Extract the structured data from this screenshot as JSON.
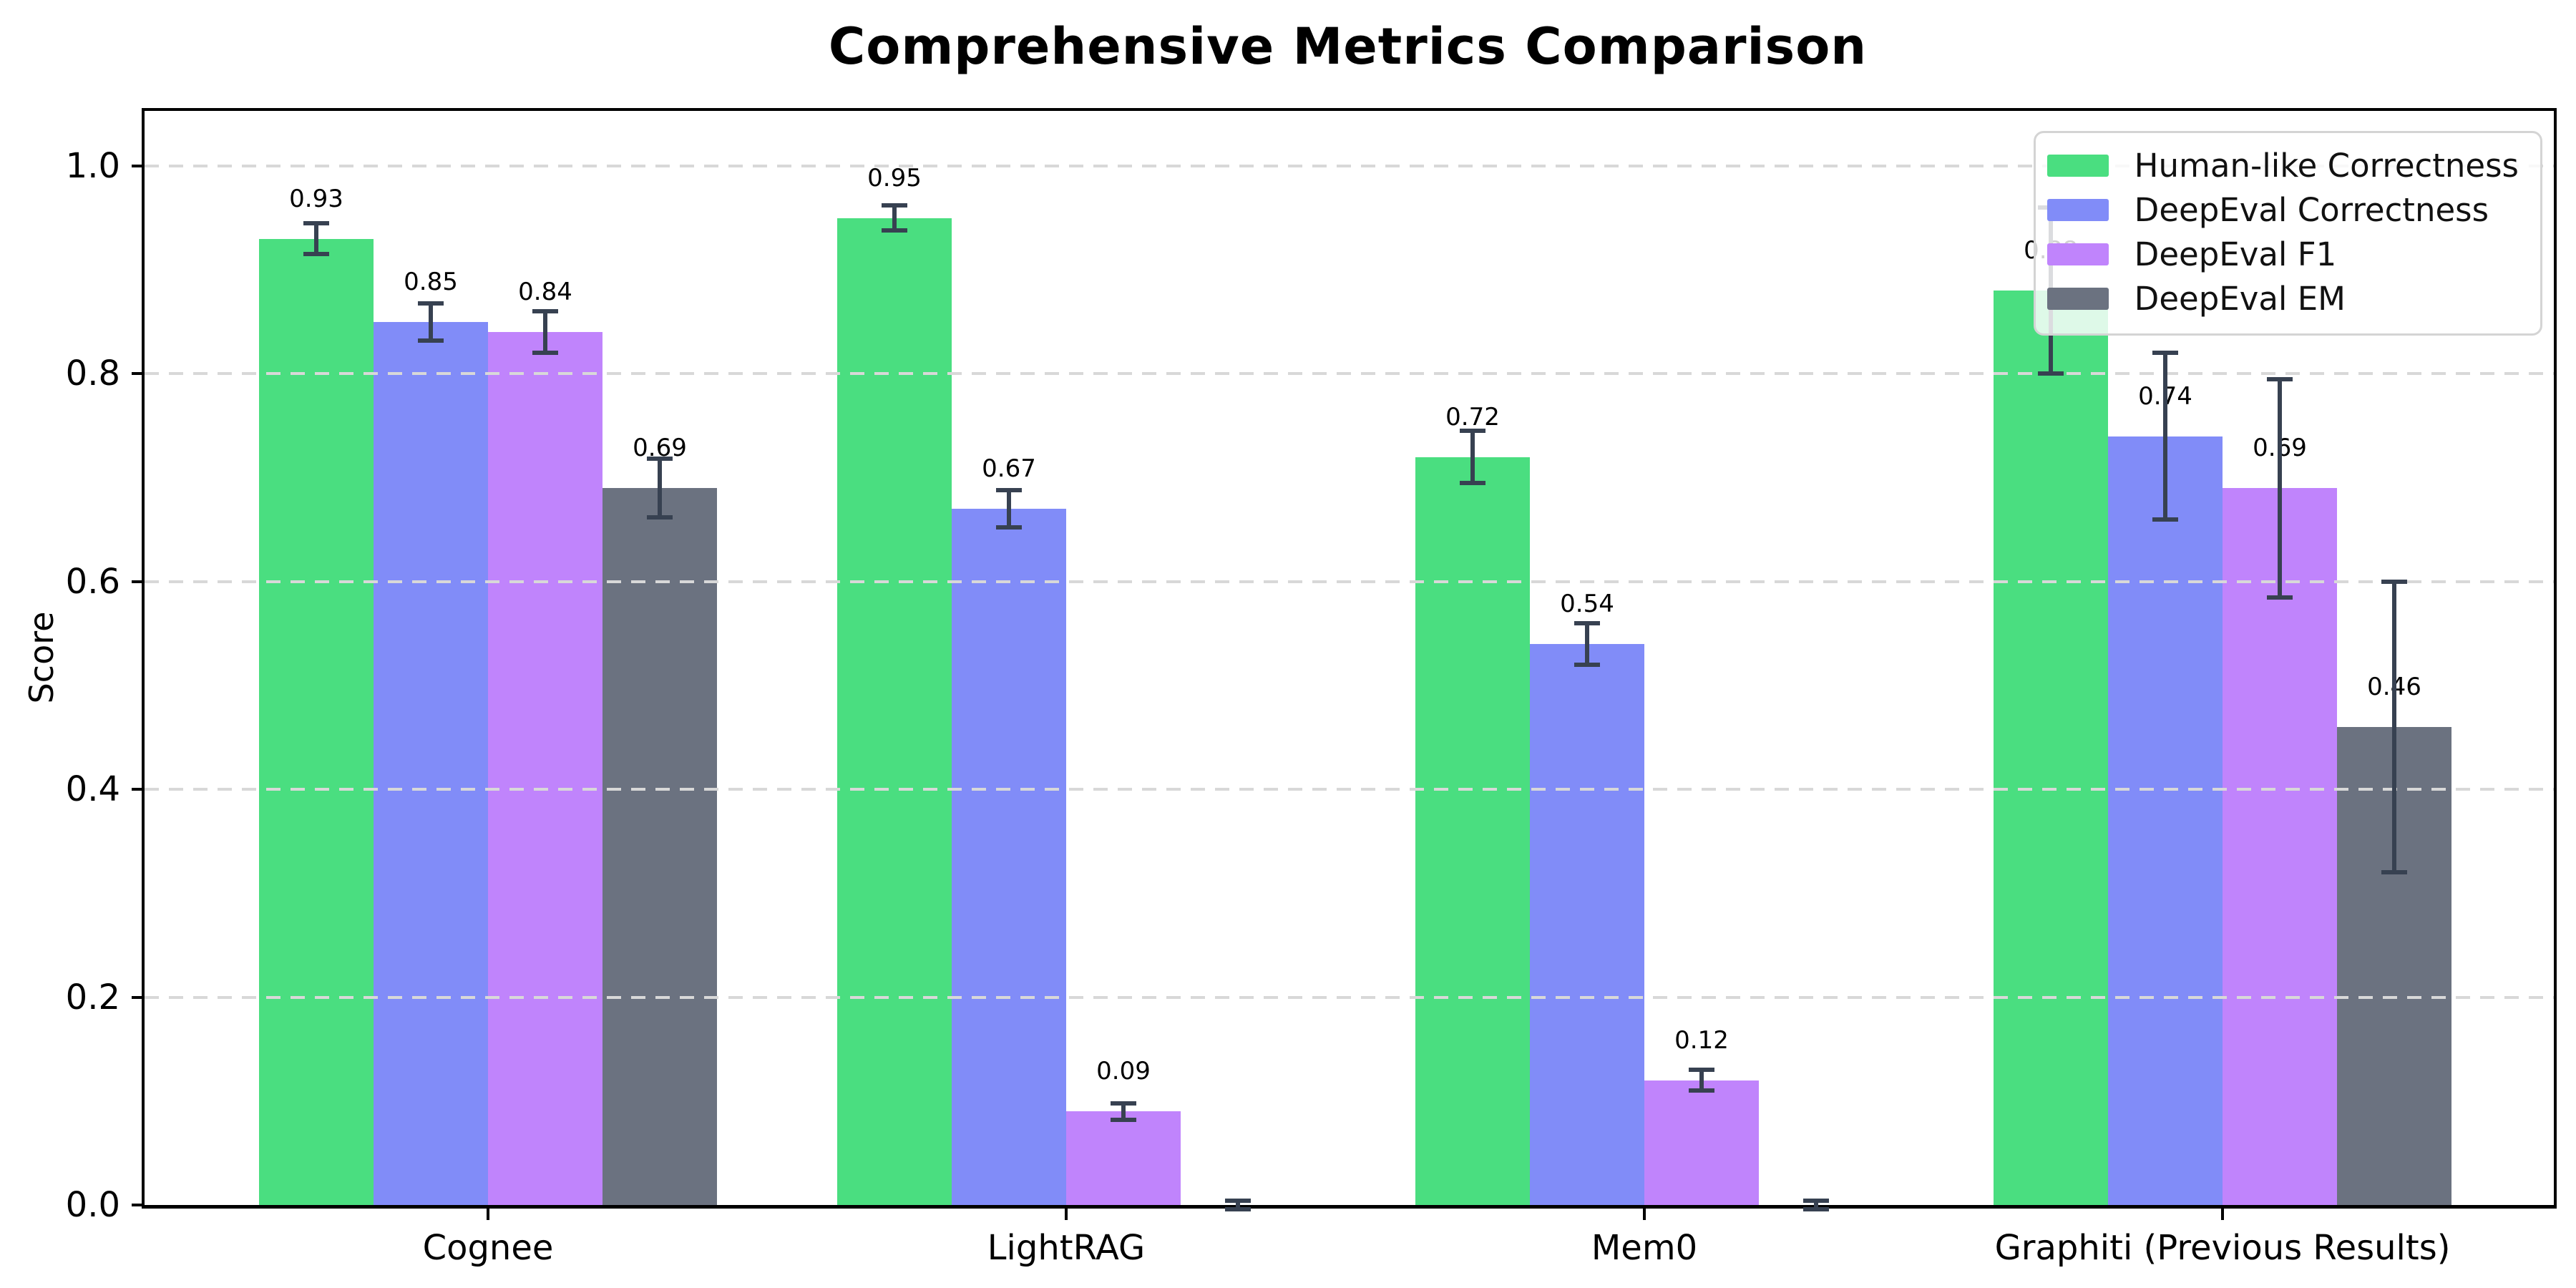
{
  "chart_data": {
    "type": "bar",
    "title": "Comprehensive Metrics Comparison",
    "xlabel": "",
    "ylabel": "Score",
    "categories": [
      "Cognee",
      "LightRAG",
      "Mem0",
      "Graphiti (Previous Results)"
    ],
    "series": [
      {
        "name": "Human-like Correctness",
        "color": "#4ade80",
        "values": [
          0.93,
          0.95,
          0.72,
          0.88
        ],
        "errors": [
          0.015,
          0.012,
          0.025,
          0.08
        ],
        "labels": [
          "0.93",
          "0.95",
          "0.72",
          "0.88"
        ]
      },
      {
        "name": "DeepEval Correctness",
        "color": "#818cf8",
        "values": [
          0.85,
          0.67,
          0.54,
          0.74
        ],
        "errors": [
          0.018,
          0.018,
          0.02,
          0.08
        ],
        "labels": [
          "0.85",
          "0.67",
          "0.54",
          "0.74"
        ]
      },
      {
        "name": "DeepEval F1",
        "color": "#c084fc",
        "values": [
          0.84,
          0.09,
          0.12,
          0.69
        ],
        "errors": [
          0.02,
          0.008,
          0.01,
          0.105
        ],
        "labels": [
          "0.84",
          "0.09",
          "0.12",
          "0.69"
        ]
      },
      {
        "name": "DeepEval EM",
        "color": "#6b7280",
        "values": [
          0.69,
          0.0,
          0.0,
          0.46
        ],
        "errors": [
          0.028,
          0.004,
          0.004,
          0.14
        ],
        "labels": [
          "0.69",
          null,
          null,
          "0.46"
        ]
      }
    ],
    "y_ticks": [
      "0.0",
      "0.2",
      "0.4",
      "0.6",
      "0.8",
      "1.0"
    ],
    "y_tick_values": [
      0,
      0.2,
      0.4,
      0.6,
      0.8,
      1.0
    ],
    "ylim": [
      0,
      1.053
    ],
    "grid": true,
    "grid_style": "dashed",
    "grid_color": "#d8d8d8",
    "error_bar_color": "#374151",
    "legend_position": "upper right"
  }
}
